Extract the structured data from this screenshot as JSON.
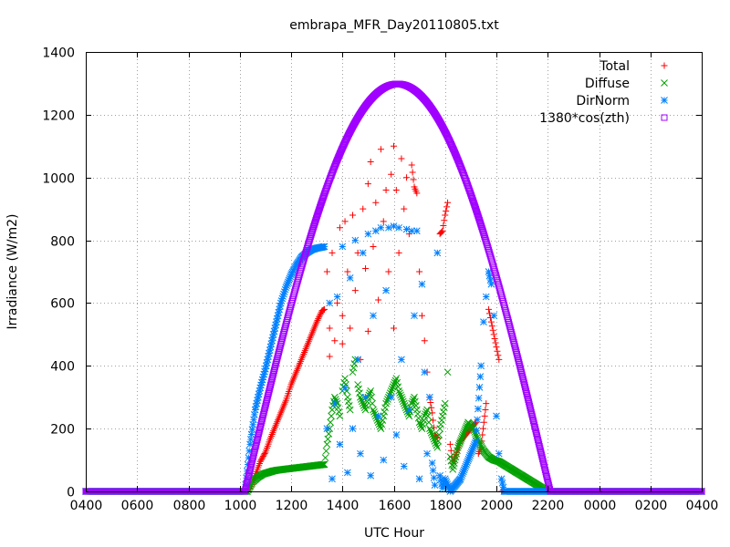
{
  "chart_data": {
    "type": "scatter",
    "title": "embrapa_MFR_Day20110805.txt",
    "xlabel": "UTC Hour",
    "ylabel": "Irradiance (W/m2)",
    "xlim": [
      4,
      28
    ],
    "ylim": [
      0,
      1400
    ],
    "xticks": [
      {
        "value": 4,
        "label": "0400"
      },
      {
        "value": 6,
        "label": "0600"
      },
      {
        "value": 8,
        "label": "0800"
      },
      {
        "value": 10,
        "label": "1000"
      },
      {
        "value": 12,
        "label": "1200"
      },
      {
        "value": 14,
        "label": "1400"
      },
      {
        "value": 16,
        "label": "1600"
      },
      {
        "value": 18,
        "label": "1800"
      },
      {
        "value": 20,
        "label": "2000"
      },
      {
        "value": 22,
        "label": "2200"
      },
      {
        "value": 24,
        "label": "0000"
      },
      {
        "value": 26,
        "label": "0200"
      },
      {
        "value": 28,
        "label": "0400"
      }
    ],
    "yticks": [
      0,
      200,
      400,
      600,
      800,
      1000,
      1200,
      1400
    ],
    "grid": true,
    "legend_position": "top-right",
    "series": [
      {
        "name": "Total",
        "color": "#ff0000",
        "marker": "plus",
        "points": [
          [
            4,
            0
          ],
          [
            10.2,
            0
          ],
          [
            10.4,
            10
          ],
          [
            10.6,
            50
          ],
          [
            10.8,
            95
          ],
          [
            11.0,
            125
          ],
          [
            11.2,
            170
          ],
          [
            11.4,
            210
          ],
          [
            11.6,
            250
          ],
          [
            11.8,
            290
          ],
          [
            12.0,
            340
          ],
          [
            12.2,
            380
          ],
          [
            12.4,
            420
          ],
          [
            12.6,
            460
          ],
          [
            12.8,
            500
          ],
          [
            13.0,
            540
          ],
          [
            13.2,
            575
          ],
          [
            13.3,
            580
          ],
          [
            13.4,
            700
          ],
          [
            13.5,
            520
          ],
          [
            13.5,
            430
          ],
          [
            13.6,
            760
          ],
          [
            13.7,
            480
          ],
          [
            13.8,
            600
          ],
          [
            13.9,
            840
          ],
          [
            14.0,
            560
          ],
          [
            14.0,
            470
          ],
          [
            14.1,
            860
          ],
          [
            14.2,
            700
          ],
          [
            14.3,
            520
          ],
          [
            14.4,
            880
          ],
          [
            14.5,
            640
          ],
          [
            14.6,
            760
          ],
          [
            14.7,
            420
          ],
          [
            14.8,
            900
          ],
          [
            14.9,
            710
          ],
          [
            15.0,
            980
          ],
          [
            15.0,
            510
          ],
          [
            15.1,
            1050
          ],
          [
            15.2,
            780
          ],
          [
            15.3,
            920
          ],
          [
            15.4,
            610
          ],
          [
            15.5,
            1090
          ],
          [
            15.6,
            860
          ],
          [
            15.7,
            960
          ],
          [
            15.8,
            700
          ],
          [
            15.9,
            1010
          ],
          [
            16.0,
            1100
          ],
          [
            16.0,
            520
          ],
          [
            16.1,
            960
          ],
          [
            16.2,
            760
          ],
          [
            16.3,
            1060
          ],
          [
            16.4,
            900
          ],
          [
            16.5,
            1000
          ],
          [
            16.6,
            820
          ],
          [
            16.7,
            1040
          ],
          [
            16.8,
            970
          ],
          [
            16.9,
            950
          ],
          [
            17.0,
            700
          ],
          [
            17.1,
            560
          ],
          [
            17.2,
            480
          ],
          [
            17.3,
            380
          ],
          [
            17.4,
            300
          ],
          [
            17.5,
            250
          ],
          [
            17.6,
            180
          ],
          [
            17.7,
            170
          ],
          [
            17.8,
            820
          ],
          [
            17.9,
            830
          ],
          [
            18.0,
            880
          ],
          [
            18.1,
            920
          ],
          [
            18.2,
            150
          ],
          [
            18.3,
            90
          ],
          [
            18.4,
            110
          ],
          [
            18.6,
            160
          ],
          [
            18.8,
            180
          ],
          [
            19.0,
            200
          ],
          [
            19.2,
            220
          ],
          [
            19.3,
            120
          ],
          [
            19.4,
            140
          ],
          [
            19.6,
            280
          ],
          [
            19.7,
            580
          ],
          [
            19.8,
            540
          ],
          [
            19.9,
            500
          ],
          [
            20.0,
            460
          ],
          [
            20.1,
            420
          ],
          [
            20.2,
            0
          ],
          [
            22.0,
            0
          ],
          [
            28,
            0
          ]
        ]
      },
      {
        "name": "Diffuse",
        "color": "#00a000",
        "marker": "cross",
        "points": [
          [
            4,
            0
          ],
          [
            10.3,
            0
          ],
          [
            10.5,
            30
          ],
          [
            10.7,
            45
          ],
          [
            10.9,
            55
          ],
          [
            11.1,
            60
          ],
          [
            11.3,
            65
          ],
          [
            11.5,
            68
          ],
          [
            11.7,
            70
          ],
          [
            11.9,
            72
          ],
          [
            12.1,
            74
          ],
          [
            12.3,
            76
          ],
          [
            12.5,
            78
          ],
          [
            12.7,
            80
          ],
          [
            12.9,
            82
          ],
          [
            13.1,
            84
          ],
          [
            13.3,
            86
          ],
          [
            13.4,
            150
          ],
          [
            13.5,
            200
          ],
          [
            13.6,
            260
          ],
          [
            13.7,
            300
          ],
          [
            13.8,
            280
          ],
          [
            13.9,
            240
          ],
          [
            14.0,
            320
          ],
          [
            14.1,
            360
          ],
          [
            14.2,
            300
          ],
          [
            14.3,
            260
          ],
          [
            14.4,
            380
          ],
          [
            14.5,
            420
          ],
          [
            14.6,
            340
          ],
          [
            14.7,
            300
          ],
          [
            14.8,
            280
          ],
          [
            14.9,
            260
          ],
          [
            15.0,
            300
          ],
          [
            15.1,
            320
          ],
          [
            15.2,
            260
          ],
          [
            15.3,
            240
          ],
          [
            15.4,
            220
          ],
          [
            15.5,
            200
          ],
          [
            15.6,
            240
          ],
          [
            15.7,
            280
          ],
          [
            15.8,
            300
          ],
          [
            15.9,
            320
          ],
          [
            16.0,
            340
          ],
          [
            16.1,
            360
          ],
          [
            16.2,
            320
          ],
          [
            16.3,
            300
          ],
          [
            16.4,
            280
          ],
          [
            16.5,
            260
          ],
          [
            16.6,
            240
          ],
          [
            16.7,
            280
          ],
          [
            16.8,
            300
          ],
          [
            16.9,
            260
          ],
          [
            17.0,
            220
          ],
          [
            17.1,
            200
          ],
          [
            17.2,
            240
          ],
          [
            17.3,
            260
          ],
          [
            17.4,
            200
          ],
          [
            17.5,
            180
          ],
          [
            17.6,
            160
          ],
          [
            17.7,
            140
          ],
          [
            17.8,
            200
          ],
          [
            17.9,
            240
          ],
          [
            18.0,
            280
          ],
          [
            18.1,
            380
          ],
          [
            18.2,
            110
          ],
          [
            18.3,
            70
          ],
          [
            18.5,
            140
          ],
          [
            18.7,
            180
          ],
          [
            18.9,
            220
          ],
          [
            19.1,
            200
          ],
          [
            19.3,
            160
          ],
          [
            19.5,
            130
          ],
          [
            19.7,
            110
          ],
          [
            19.9,
            100
          ],
          [
            20.1,
            95
          ],
          [
            20.3,
            85
          ],
          [
            20.5,
            75
          ],
          [
            20.7,
            65
          ],
          [
            20.9,
            55
          ],
          [
            21.1,
            45
          ],
          [
            21.3,
            35
          ],
          [
            21.5,
            25
          ],
          [
            21.7,
            15
          ],
          [
            21.9,
            5
          ],
          [
            22.1,
            0
          ],
          [
            28,
            0
          ]
        ]
      },
      {
        "name": "DirNorm",
        "color": "#0080ff",
        "marker": "star",
        "points": [
          [
            4,
            0
          ],
          [
            10.2,
            0
          ],
          [
            10.4,
            150
          ],
          [
            10.6,
            260
          ],
          [
            10.8,
            330
          ],
          [
            11.0,
            390
          ],
          [
            11.2,
            460
          ],
          [
            11.4,
            530
          ],
          [
            11.6,
            600
          ],
          [
            11.8,
            650
          ],
          [
            12.0,
            690
          ],
          [
            12.2,
            720
          ],
          [
            12.4,
            745
          ],
          [
            12.6,
            760
          ],
          [
            12.8,
            770
          ],
          [
            13.0,
            775
          ],
          [
            13.2,
            778
          ],
          [
            13.3,
            780
          ],
          [
            13.4,
            200
          ],
          [
            13.5,
            600
          ],
          [
            13.6,
            40
          ],
          [
            13.7,
            280
          ],
          [
            13.8,
            620
          ],
          [
            13.9,
            150
          ],
          [
            14.0,
            780
          ],
          [
            14.1,
            330
          ],
          [
            14.2,
            60
          ],
          [
            14.3,
            680
          ],
          [
            14.4,
            200
          ],
          [
            14.5,
            800
          ],
          [
            14.6,
            420
          ],
          [
            14.7,
            120
          ],
          [
            14.8,
            760
          ],
          [
            14.9,
            300
          ],
          [
            15.0,
            820
          ],
          [
            15.1,
            50
          ],
          [
            15.2,
            560
          ],
          [
            15.3,
            830
          ],
          [
            15.4,
            240
          ],
          [
            15.5,
            840
          ],
          [
            15.6,
            100
          ],
          [
            15.7,
            640
          ],
          [
            15.8,
            840
          ],
          [
            15.9,
            300
          ],
          [
            16.0,
            845
          ],
          [
            16.1,
            180
          ],
          [
            16.2,
            840
          ],
          [
            16.3,
            420
          ],
          [
            16.4,
            80
          ],
          [
            16.5,
            835
          ],
          [
            16.6,
            260
          ],
          [
            16.7,
            830
          ],
          [
            16.8,
            560
          ],
          [
            16.9,
            830
          ],
          [
            17.0,
            40
          ],
          [
            17.1,
            660
          ],
          [
            17.2,
            380
          ],
          [
            17.3,
            120
          ],
          [
            17.4,
            300
          ],
          [
            17.5,
            90
          ],
          [
            17.6,
            20
          ],
          [
            17.7,
            760
          ],
          [
            17.8,
            50
          ],
          [
            17.9,
            10
          ],
          [
            18.0,
            40
          ],
          [
            18.2,
            0
          ],
          [
            18.4,
            20
          ],
          [
            18.6,
            40
          ],
          [
            18.8,
            80
          ],
          [
            19.0,
            120
          ],
          [
            19.2,
            160
          ],
          [
            19.4,
            400
          ],
          [
            19.5,
            540
          ],
          [
            19.6,
            620
          ],
          [
            19.7,
            700
          ],
          [
            19.8,
            660
          ],
          [
            19.9,
            560
          ],
          [
            20.0,
            240
          ],
          [
            20.1,
            120
          ],
          [
            20.2,
            40
          ],
          [
            20.3,
            0
          ],
          [
            28,
            0
          ]
        ]
      },
      {
        "name": "1380*cos(zth)",
        "color": "#a000ff",
        "marker": "square",
        "curve": {
          "sunrise": 10.2,
          "sunset": 22.1,
          "noon": 16.15,
          "peak": 1298
        },
        "points": [
          [
            4,
            0
          ],
          [
            10.2,
            0
          ],
          [
            16.15,
            1298
          ],
          [
            22.1,
            0
          ],
          [
            28,
            0
          ]
        ]
      }
    ]
  }
}
